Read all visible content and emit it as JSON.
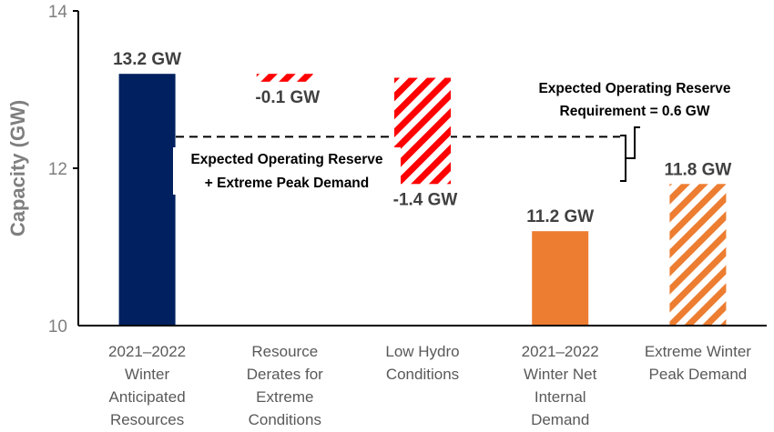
{
  "chart_data": {
    "type": "bar",
    "subtype": "waterfall",
    "ylabel": "Capacity (GW)",
    "ylim": [
      10,
      14
    ],
    "yticks": [
      "10",
      "12",
      "14"
    ],
    "categories": [
      [
        "2021–2022",
        "Winter",
        "Anticipated",
        "Resources"
      ],
      [
        "Resource",
        "Derates for",
        "Extreme",
        "Conditions"
      ],
      [
        "Low Hydro",
        "Conditions"
      ],
      [
        "2021–2022",
        "Winter Net",
        "Internal",
        "Demand"
      ],
      [
        "Extreme Winter",
        "Peak Demand"
      ]
    ],
    "bars": [
      {
        "base": 10,
        "top": 13.2,
        "label": "13.2 GW",
        "style": "solid",
        "color": "#002060"
      },
      {
        "base": 13.1,
        "top": 13.2,
        "label": "-0.1 GW",
        "style": "hatched",
        "color": "#ff0000"
      },
      {
        "base": 11.8,
        "top": 13.15,
        "label": "-1.4 GW",
        "style": "hatched",
        "color": "#ff0000"
      },
      {
        "base": 10,
        "top": 11.2,
        "label": "11.2 GW",
        "style": "solid",
        "color": "#ed7d31"
      },
      {
        "base": 10,
        "top": 11.8,
        "label": "11.8 GW",
        "style": "hatched",
        "color": "#ed7d31"
      }
    ],
    "reference_line": {
      "value": 12.4,
      "style": "dashed"
    },
    "annotations": {
      "reserve_requirement": [
        "Expected Operating Reserve",
        "Requirement = 0.6 GW"
      ],
      "reserve_plus_demand": [
        "Expected Operating Reserve",
        "+ Extreme Peak Demand"
      ]
    },
    "grid": false,
    "legend": "none"
  }
}
